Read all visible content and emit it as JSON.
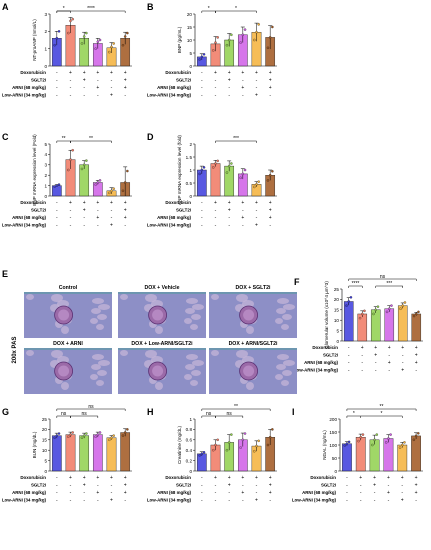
{
  "figure": {
    "rowLabels": [
      "Doxorubicin",
      "SGLT2i",
      "ARNI (68 mg/kg)",
      "Low-ARNI (34 mg/kg)"
    ],
    "marks": [
      "-",
      "+"
    ],
    "histology": {
      "panel": "E",
      "sideLabel": "200x PAS",
      "titles": [
        "Control",
        "DOX + Vehicle",
        "DOX + SGLT2i",
        "DOX + ARNI",
        "DOX + Low-ARNI/SGLT2i",
        "DOX + ARNI/SGLT2i"
      ]
    }
  },
  "chart_data": [
    {
      "type": "bar",
      "panel": "A",
      "ylabel": "NT-proANP (nmol/L)",
      "ylim": [
        0,
        3
      ],
      "yticks": [
        0,
        1,
        2,
        3
      ],
      "colors": [
        "#3b3bdc",
        "#f07862",
        "#8fd04c",
        "#cf5ee6",
        "#f5b23a",
        "#a0561e"
      ],
      "values": [
        1.6,
        2.35,
        1.6,
        1.3,
        1.05,
        1.6
      ],
      "points": [
        [
          1.2,
          1.6,
          2.0
        ],
        [
          1.9,
          2.6,
          2.7
        ],
        [
          1.3,
          1.7,
          1.9
        ],
        [
          1.0,
          1.4,
          1.5
        ],
        [
          0.8,
          1.1,
          1.3
        ],
        [
          1.2,
          1.7,
          1.9
        ]
      ],
      "errors": [
        0.4,
        0.45,
        0.35,
        0.3,
        0.3,
        0.35
      ],
      "signif": [
        {
          "from": 0,
          "to": 1,
          "label": "*",
          "level": 0
        },
        {
          "from": 0,
          "to": 5,
          "label": "****",
          "level": 0
        }
      ],
      "signs": [
        [
          "-",
          "+",
          "+",
          "+",
          "+",
          "+"
        ],
        [
          "-",
          "-",
          "+",
          "-",
          "-",
          "+"
        ],
        [
          "-",
          "-",
          "-",
          "+",
          "-",
          "+"
        ],
        [
          "-",
          "-",
          "-",
          "-",
          "+",
          "-"
        ]
      ]
    },
    {
      "type": "bar",
      "panel": "B",
      "ylabel": "BNP (pg/mL)",
      "ylim": [
        0,
        20
      ],
      "yticks": [
        0,
        5,
        10,
        15,
        20
      ],
      "colors": [
        "#3b3bdc",
        "#f07862",
        "#8fd04c",
        "#cf5ee6",
        "#f5b23a",
        "#a0561e"
      ],
      "values": [
        3.5,
        8.5,
        10,
        12,
        13,
        11
      ],
      "points": [
        [
          2.5,
          3.5,
          4.5
        ],
        [
          6,
          9,
          11
        ],
        [
          8,
          10,
          12
        ],
        [
          9,
          12,
          14
        ],
        [
          10,
          13,
          16
        ],
        [
          7,
          11,
          15
        ]
      ],
      "errors": [
        1.2,
        2.8,
        2.5,
        3,
        3.5,
        4.5
      ],
      "signif": [
        {
          "from": 0,
          "to": 1,
          "label": "*",
          "level": 0
        },
        {
          "from": 1,
          "to": 4,
          "label": "*",
          "level": 0
        }
      ],
      "signs": [
        [
          "-",
          "+",
          "+",
          "+",
          "+",
          "+"
        ],
        [
          "-",
          "-",
          "+",
          "-",
          "-",
          "+"
        ],
        [
          "-",
          "-",
          "-",
          "+",
          "-",
          "+"
        ],
        [
          "-",
          "-",
          "-",
          "-",
          "+",
          "-"
        ]
      ]
    },
    {
      "type": "bar",
      "panel": "C",
      "ylabel": "BNP mRNA expression level (Fold)",
      "ylim": [
        0,
        5
      ],
      "yticks": [
        0,
        1,
        2,
        3,
        4,
        5
      ],
      "colors": [
        "#3b3bdc",
        "#f07862",
        "#8fd04c",
        "#cf5ee6",
        "#f5b23a",
        "#a0561e"
      ],
      "values": [
        1.0,
        3.5,
        3.0,
        1.3,
        0.5,
        1.3
      ],
      "points": [
        [
          0.9,
          1.0,
          1.1
        ],
        [
          2.5,
          3.5,
          4.4
        ],
        [
          2.6,
          3.0,
          3.4
        ],
        [
          1.1,
          1.3,
          1.5
        ],
        [
          0.3,
          0.5,
          0.7
        ],
        [
          0.5,
          1.3,
          2.4
        ]
      ],
      "errors": [
        0.1,
        0.9,
        0.4,
        0.2,
        0.3,
        1.5
      ],
      "signif": [
        {
          "from": 0,
          "to": 1,
          "label": "**",
          "level": 0
        },
        {
          "from": 1,
          "to": 4,
          "label": "**",
          "level": 0
        }
      ],
      "signs": [
        [
          "-",
          "+",
          "+",
          "+",
          "+",
          "+"
        ],
        [
          "-",
          "-",
          "+",
          "-",
          "-",
          "+"
        ],
        [
          "-",
          "-",
          "-",
          "+",
          "-",
          "+"
        ],
        [
          "-",
          "-",
          "-",
          "-",
          "+",
          "-"
        ]
      ]
    },
    {
      "type": "bar",
      "panel": "D",
      "ylabel": "ANP mRNA expression level (fold)",
      "ylim": [
        0,
        2.0
      ],
      "yticks": [
        0,
        0.5,
        1.0,
        1.5,
        2.0
      ],
      "colors": [
        "#3b3bdc",
        "#f07862",
        "#8fd04c",
        "#cf5ee6",
        "#f5b23a",
        "#a0561e"
      ],
      "values": [
        1.0,
        1.25,
        1.15,
        0.85,
        0.45,
        0.8
      ],
      "points": [
        [
          0.85,
          1.0,
          1.1
        ],
        [
          1.1,
          1.25,
          1.35
        ],
        [
          0.9,
          1.15,
          1.25
        ],
        [
          0.7,
          0.85,
          1.0
        ],
        [
          0.35,
          0.45,
          0.55
        ],
        [
          0.6,
          0.8,
          0.95
        ]
      ],
      "errors": [
        0.15,
        0.12,
        0.2,
        0.2,
        0.1,
        0.2
      ],
      "signif": [
        {
          "from": 1,
          "to": 4,
          "label": "***",
          "level": 0
        }
      ],
      "signs": [
        [
          "-",
          "+",
          "+",
          "+",
          "+",
          "+"
        ],
        [
          "-",
          "-",
          "+",
          "-",
          "-",
          "+"
        ],
        [
          "-",
          "-",
          "-",
          "+",
          "-",
          "+"
        ],
        [
          "-",
          "-",
          "-",
          "-",
          "+",
          "-"
        ]
      ]
    },
    {
      "type": "bar",
      "panel": "F",
      "ylabel": "Glomerular volume (x10^4 µm^3)",
      "ylim": [
        0,
        25
      ],
      "yticks": [
        0,
        5,
        10,
        15,
        20,
        25
      ],
      "colors": [
        "#3b3bdc",
        "#f07862",
        "#8fd04c",
        "#cf5ee6",
        "#f5b23a",
        "#a0561e"
      ],
      "values": [
        19,
        13,
        15,
        15.5,
        17,
        13
      ],
      "points": [
        [
          17,
          19,
          21
        ],
        [
          11,
          13,
          14.5
        ],
        [
          13,
          15,
          16.5
        ],
        [
          14,
          15.5,
          17
        ],
        [
          15.5,
          17,
          18.5
        ],
        [
          12,
          13,
          14
        ]
      ],
      "errors": [
        1.8,
        1.5,
        1.5,
        1.5,
        1.3,
        0.8
      ],
      "signif": [
        {
          "from": 0,
          "to": 1,
          "label": "****",
          "level": 0
        },
        {
          "from": 2,
          "to": 4,
          "label": "***",
          "level": 0
        },
        {
          "from": 0,
          "to": 5,
          "label": "ns",
          "level": 1
        }
      ],
      "signs": [
        [
          "-",
          "+",
          "+",
          "+",
          "+",
          "+"
        ],
        [
          "-",
          "-",
          "+",
          "-",
          "-",
          "+"
        ],
        [
          "-",
          "-",
          "-",
          "+",
          "-",
          "+"
        ],
        [
          "-",
          "-",
          "-",
          "-",
          "+",
          "-"
        ]
      ]
    },
    {
      "type": "bar",
      "panel": "G",
      "ylabel": "BUN (mg/dL)",
      "ylim": [
        0,
        25
      ],
      "yticks": [
        0,
        5,
        10,
        15,
        20,
        25
      ],
      "colors": [
        "#3b3bdc",
        "#f07862",
        "#8fd04c",
        "#cf5ee6",
        "#f5b23a",
        "#a0561e"
      ],
      "values": [
        17,
        17.5,
        17,
        17.5,
        16,
        18.5
      ],
      "points": [
        [
          16,
          17,
          18
        ],
        [
          16.5,
          17.5,
          18.5
        ],
        [
          16,
          17,
          18
        ],
        [
          16.5,
          17.5,
          18.5
        ],
        [
          15,
          16,
          17
        ],
        [
          17,
          18.5,
          20
        ]
      ],
      "errors": [
        1.2,
        1.2,
        1.2,
        1.2,
        1.0,
        1.8
      ],
      "signif": [
        {
          "from": 0,
          "to": 1,
          "label": "ns",
          "level": 0
        },
        {
          "from": 1,
          "to": 3,
          "label": "ns",
          "level": 0
        },
        {
          "from": 0,
          "to": 5,
          "label": "ns",
          "level": 1
        }
      ],
      "signs": [
        [
          "-",
          "+",
          "+",
          "+",
          "+",
          "+"
        ],
        [
          "-",
          "-",
          "+",
          "-",
          "-",
          "+"
        ],
        [
          "-",
          "-",
          "-",
          "+",
          "-",
          "+"
        ],
        [
          "-",
          "-",
          "-",
          "-",
          "+",
          "-"
        ]
      ]
    },
    {
      "type": "bar",
      "panel": "H",
      "ylabel": "Creatinine (mg/dL)",
      "ylim": [
        0,
        1.0
      ],
      "yticks": [
        0,
        0.2,
        0.4,
        0.6,
        0.8,
        1.0
      ],
      "colors": [
        "#3b3bdc",
        "#f07862",
        "#8fd04c",
        "#cf5ee6",
        "#f5b23a",
        "#a0561e"
      ],
      "values": [
        0.33,
        0.5,
        0.55,
        0.6,
        0.48,
        0.65
      ],
      "points": [
        [
          0.3,
          0.33,
          0.36
        ],
        [
          0.4,
          0.5,
          0.6
        ],
        [
          0.4,
          0.55,
          0.7
        ],
        [
          0.45,
          0.6,
          0.72
        ],
        [
          0.38,
          0.48,
          0.58
        ],
        [
          0.5,
          0.65,
          0.8
        ]
      ],
      "errors": [
        0.04,
        0.1,
        0.15,
        0.13,
        0.1,
        0.15
      ],
      "signif": [
        {
          "from": 0,
          "to": 1,
          "label": "ns",
          "level": 0
        },
        {
          "from": 1,
          "to": 3,
          "label": "ns",
          "level": 0
        },
        {
          "from": 0,
          "to": 5,
          "label": "**",
          "level": 1
        }
      ],
      "signs": [
        [
          "-",
          "+",
          "+",
          "+",
          "+",
          "+"
        ],
        [
          "-",
          "-",
          "+",
          "-",
          "-",
          "+"
        ],
        [
          "-",
          "-",
          "-",
          "+",
          "-",
          "+"
        ],
        [
          "-",
          "-",
          "-",
          "-",
          "+",
          "-"
        ]
      ]
    },
    {
      "type": "bar",
      "panel": "I",
      "ylabel": "NGAL (ng/mL)",
      "ylim": [
        0,
        200
      ],
      "yticks": [
        0,
        50,
        100,
        150,
        200
      ],
      "colors": [
        "#3b3bdc",
        "#f07862",
        "#8fd04c",
        "#cf5ee6",
        "#f5b23a",
        "#a0561e"
      ],
      "values": [
        105,
        130,
        120,
        125,
        100,
        135
      ],
      "points": [
        [
          98,
          105,
          112
        ],
        [
          115,
          130,
          140
        ],
        [
          100,
          120,
          140
        ],
        [
          110,
          125,
          140
        ],
        [
          90,
          100,
          110
        ],
        [
          120,
          135,
          145
        ]
      ],
      "errors": [
        8,
        12,
        18,
        15,
        10,
        12
      ],
      "signif": [
        {
          "from": 0,
          "to": 1,
          "label": "*",
          "level": 0
        },
        {
          "from": 1,
          "to": 4,
          "label": "*",
          "level": 0
        },
        {
          "from": 0,
          "to": 5,
          "label": "**",
          "level": 1
        }
      ],
      "signs": [
        [
          "-",
          "+",
          "+",
          "+",
          "+",
          "+"
        ],
        [
          "-",
          "-",
          "+",
          "-",
          "-",
          "+"
        ],
        [
          "-",
          "-",
          "-",
          "+",
          "-",
          "+"
        ],
        [
          "-",
          "-",
          "-",
          "-",
          "+",
          "-"
        ]
      ]
    }
  ]
}
